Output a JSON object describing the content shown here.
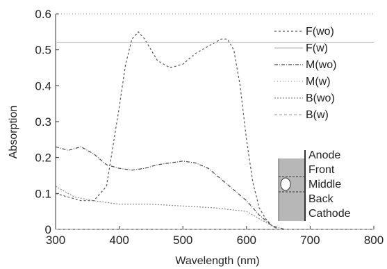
{
  "chart_data": {
    "type": "line",
    "xlabel": "Wavelength (nm)",
    "ylabel": "Absorption",
    "xlim": [
      300,
      800
    ],
    "ylim": [
      0,
      0.6
    ],
    "x_ticks": [
      "300",
      "400",
      "500",
      "600",
      "700",
      "800"
    ],
    "y_ticks": [
      "0",
      "0.1",
      "0.2",
      "0.3",
      "0.4",
      "0.5",
      "0.6"
    ],
    "x_tick_values": [
      300,
      400,
      500,
      600,
      700,
      800
    ],
    "y_tick_values": [
      0,
      0.1,
      0.2,
      0.3,
      0.4,
      0.5,
      0.6
    ],
    "grid": false,
    "legend_position": "right",
    "series": [
      {
        "name": "F(wo)",
        "color": "#555555",
        "dash": "3,3",
        "x": [
          300,
          340,
          360,
          380,
          400,
          410,
          420,
          430,
          440,
          460,
          480,
          500,
          520,
          540,
          560,
          570,
          580,
          590,
          600,
          610,
          620,
          630,
          640,
          650
        ],
        "y": [
          0.1,
          0.08,
          0.08,
          0.12,
          0.34,
          0.46,
          0.53,
          0.55,
          0.53,
          0.47,
          0.45,
          0.46,
          0.49,
          0.51,
          0.53,
          0.53,
          0.5,
          0.4,
          0.25,
          0.13,
          0.06,
          0.03,
          0.01,
          0.0
        ]
      },
      {
        "name": "F(w)",
        "color": "#bbbbbb",
        "dash": "",
        "x": [
          300,
          400,
          500,
          600,
          650,
          700,
          800
        ],
        "y": [
          0.52,
          0.52,
          0.52,
          0.52,
          0.52,
          0.52,
          0.52
        ]
      },
      {
        "name": "M(wo)",
        "color": "#444444",
        "dash": "5,2,1,2",
        "x": [
          300,
          320,
          340,
          360,
          380,
          400,
          420,
          440,
          460,
          480,
          500,
          520,
          540,
          560,
          580,
          600,
          620,
          640,
          660
        ],
        "y": [
          0.23,
          0.22,
          0.23,
          0.21,
          0.18,
          0.17,
          0.165,
          0.17,
          0.18,
          0.185,
          0.19,
          0.185,
          0.17,
          0.14,
          0.11,
          0.08,
          0.04,
          0.01,
          0.0
        ]
      },
      {
        "name": "M(w)",
        "color": "#999999",
        "dash": "1,3",
        "x": [
          300,
          800
        ],
        "y": [
          0.6,
          0.6
        ]
      },
      {
        "name": "B(wo)",
        "color": "#888888",
        "dash": "2,2",
        "x": [
          300,
          330,
          360,
          400,
          450,
          500,
          550,
          600,
          630,
          650
        ],
        "y": [
          0.12,
          0.09,
          0.08,
          0.07,
          0.07,
          0.065,
          0.06,
          0.05,
          0.02,
          0.0
        ]
      },
      {
        "name": "B(w)",
        "color": "#aaaaaa",
        "dash": "4,3",
        "x": [
          300,
          800
        ],
        "y": [
          0.0,
          0.0
        ]
      }
    ],
    "inset": {
      "labels": [
        "Anode",
        "Front",
        "Middle",
        "Back",
        "Cathode"
      ],
      "colors": {
        "band": "#b7b7b7",
        "edge": "#333333",
        "marker": "#ffffff"
      }
    }
  }
}
